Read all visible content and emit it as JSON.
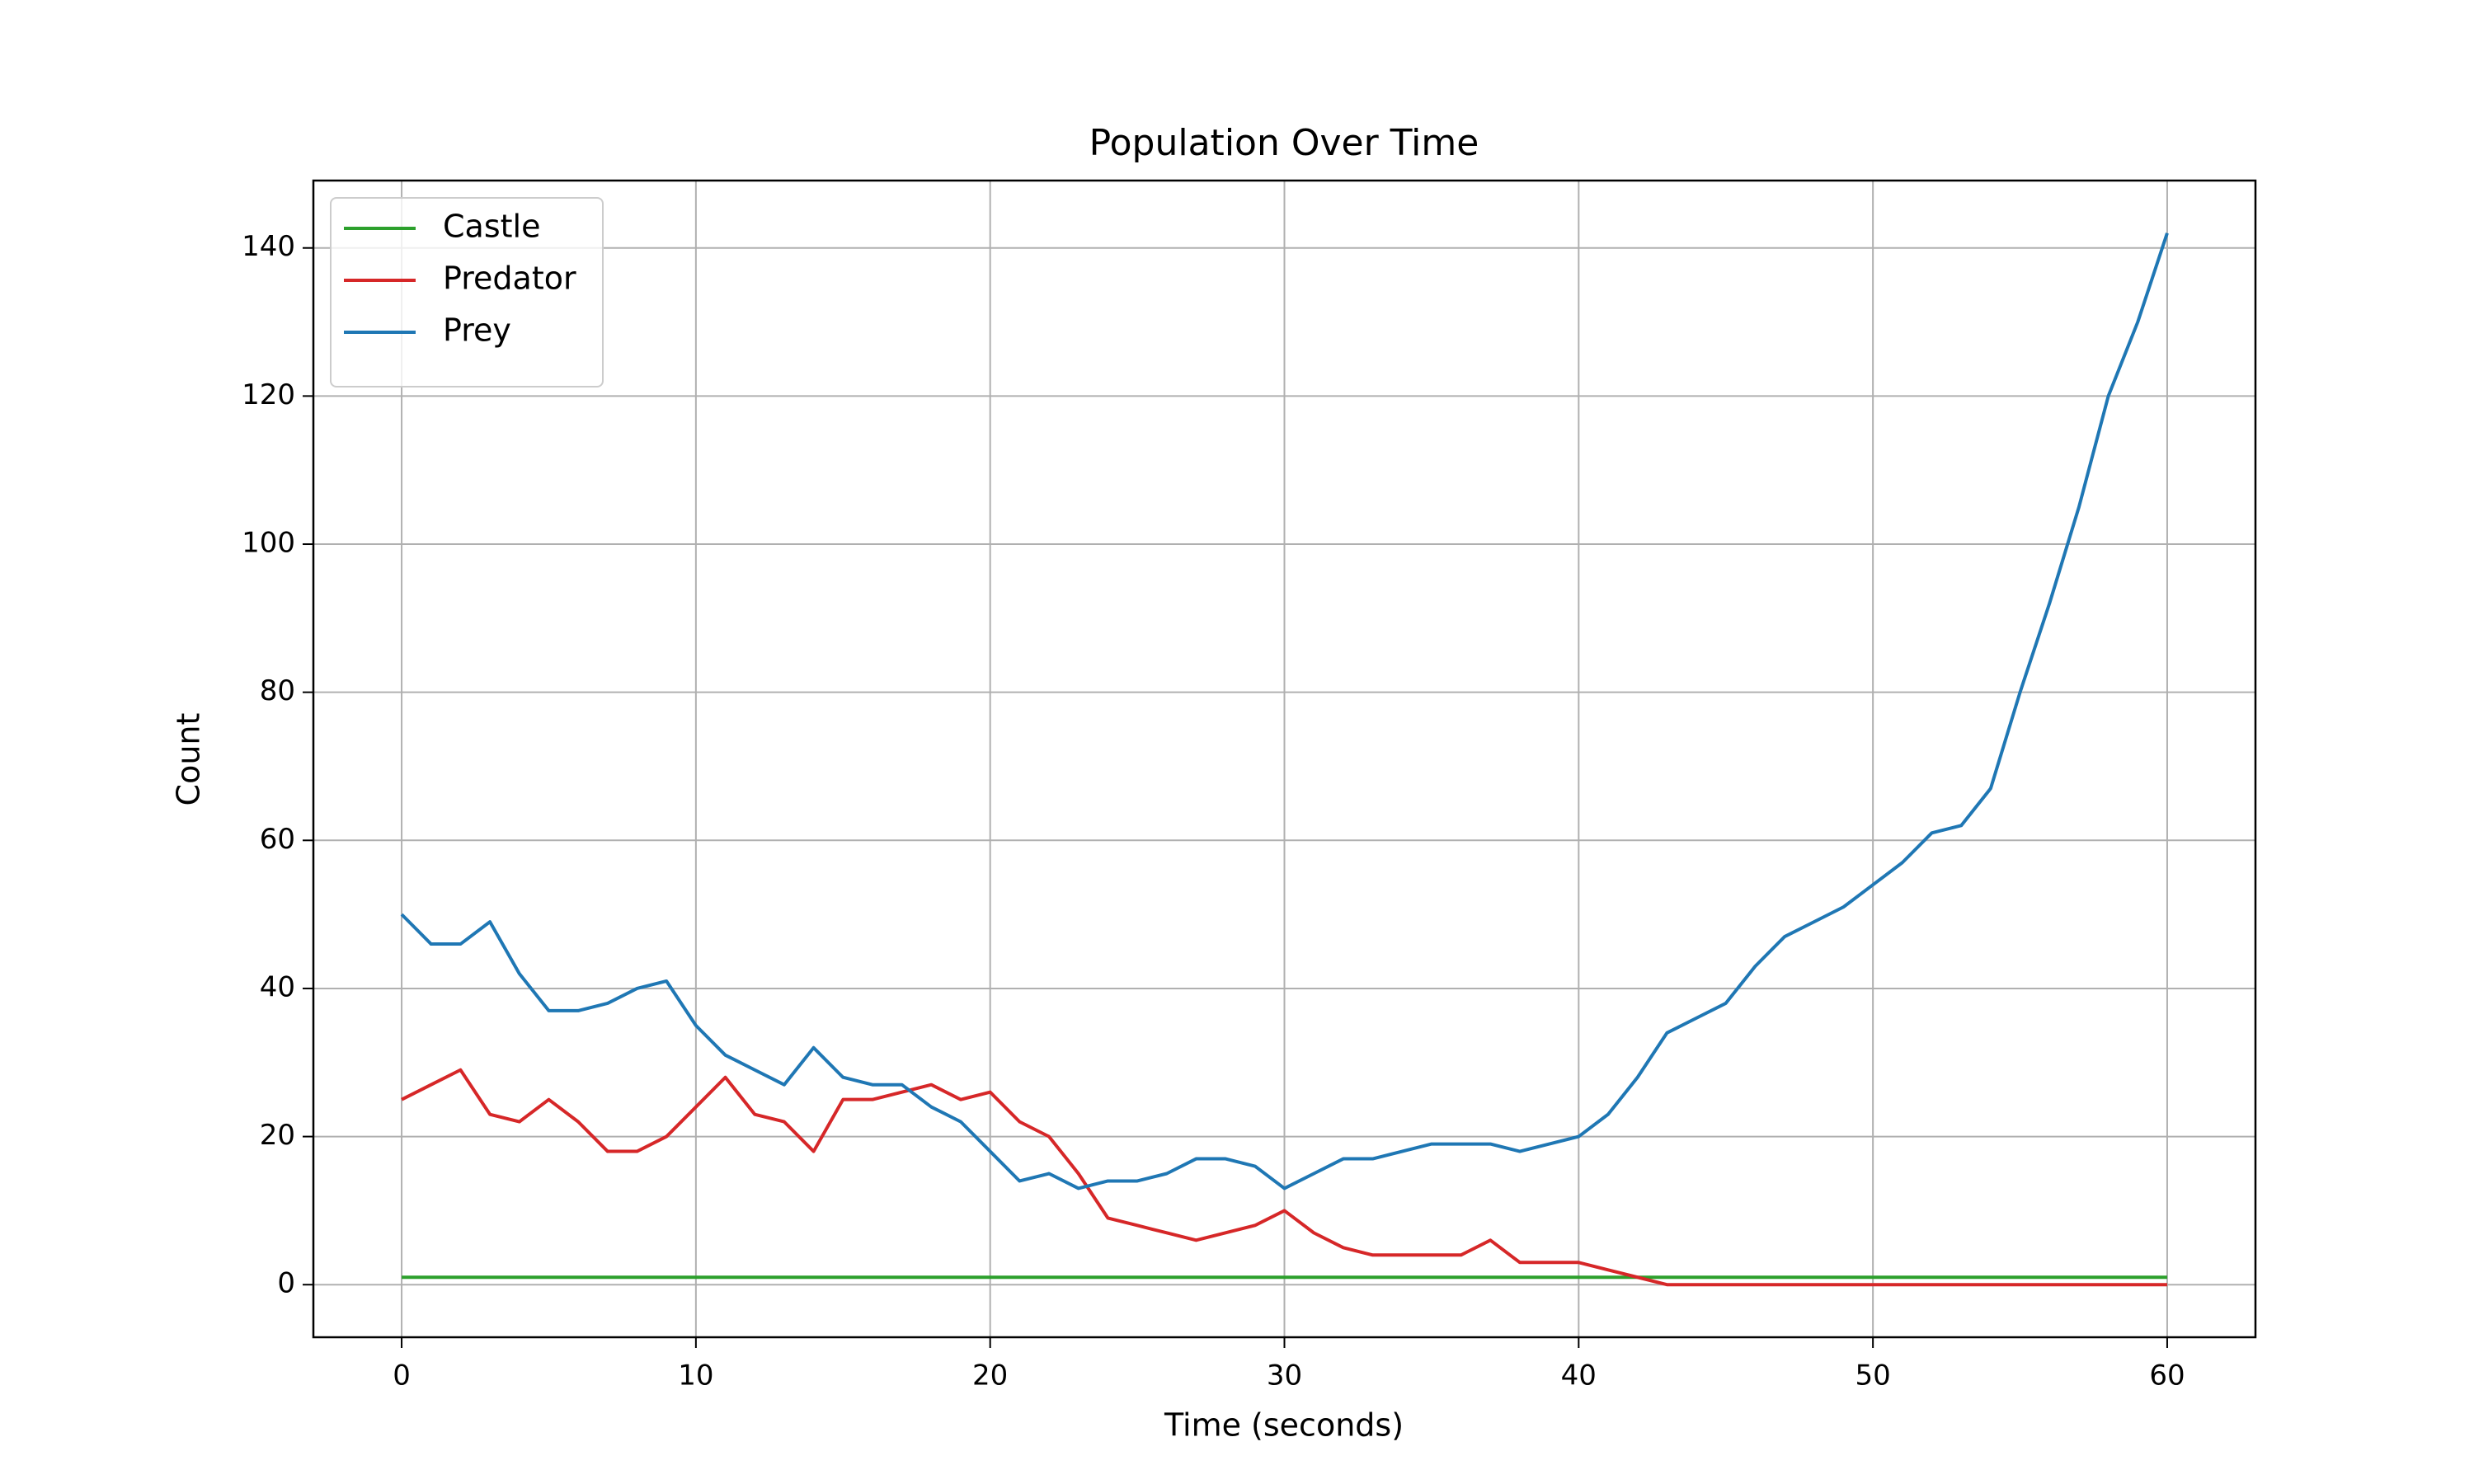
{
  "chart_data": {
    "type": "line",
    "title": "Population Over Time",
    "x_label": "Time (seconds)",
    "y_label": "Count",
    "x": [
      0,
      1,
      2,
      3,
      4,
      5,
      6,
      7,
      8,
      9,
      10,
      11,
      12,
      13,
      14,
      15,
      16,
      17,
      18,
      19,
      20,
      21,
      22,
      23,
      24,
      25,
      26,
      27,
      28,
      29,
      30,
      31,
      32,
      33,
      34,
      35,
      36,
      37,
      38,
      39,
      40,
      41,
      42,
      43,
      44,
      45,
      46,
      47,
      48,
      49,
      50,
      51,
      52,
      53,
      54,
      55,
      56,
      57,
      58,
      59,
      60
    ],
    "series": [
      {
        "name": "Castle",
        "color": "#2ca02c",
        "values": [
          1,
          1,
          1,
          1,
          1,
          1,
          1,
          1,
          1,
          1,
          1,
          1,
          1,
          1,
          1,
          1,
          1,
          1,
          1,
          1,
          1,
          1,
          1,
          1,
          1,
          1,
          1,
          1,
          1,
          1,
          1,
          1,
          1,
          1,
          1,
          1,
          1,
          1,
          1,
          1,
          1,
          1,
          1,
          1,
          1,
          1,
          1,
          1,
          1,
          1,
          1,
          1,
          1,
          1,
          1,
          1,
          1,
          1,
          1,
          1,
          1
        ]
      },
      {
        "name": "Predator",
        "color": "#d62728",
        "values": [
          25,
          27,
          29,
          23,
          22,
          25,
          22,
          18,
          18,
          20,
          24,
          28,
          23,
          22,
          18,
          25,
          25,
          26,
          27,
          25,
          26,
          22,
          20,
          15,
          9,
          8,
          7,
          6,
          7,
          8,
          10,
          7,
          5,
          4,
          4,
          4,
          4,
          6,
          3,
          3,
          3,
          2,
          1,
          0,
          0,
          0,
          0,
          0,
          0,
          0,
          0,
          0,
          0,
          0,
          0,
          0,
          0,
          0,
          0,
          0,
          0
        ]
      },
      {
        "name": "Prey",
        "color": "#1f77b4",
        "values": [
          50,
          46,
          46,
          49,
          42,
          37,
          37,
          38,
          40,
          41,
          35,
          31,
          29,
          27,
          32,
          28,
          27,
          27,
          24,
          22,
          18,
          14,
          15,
          13,
          14,
          14,
          15,
          17,
          17,
          16,
          13,
          15,
          17,
          17,
          18,
          19,
          19,
          19,
          18,
          19,
          20,
          23,
          28,
          34,
          36,
          38,
          43,
          47,
          49,
          51,
          54,
          57,
          61,
          62,
          67,
          80,
          92,
          105,
          120,
          130,
          142
        ]
      }
    ],
    "xlim": [
      -3,
      63
    ],
    "ylim": [
      -7.1,
      149.1
    ],
    "xticks": [
      0,
      10,
      20,
      30,
      40,
      50,
      60
    ],
    "yticks": [
      0,
      20,
      40,
      60,
      80,
      100,
      120,
      140
    ],
    "grid": true,
    "legend": "upper-left"
  }
}
